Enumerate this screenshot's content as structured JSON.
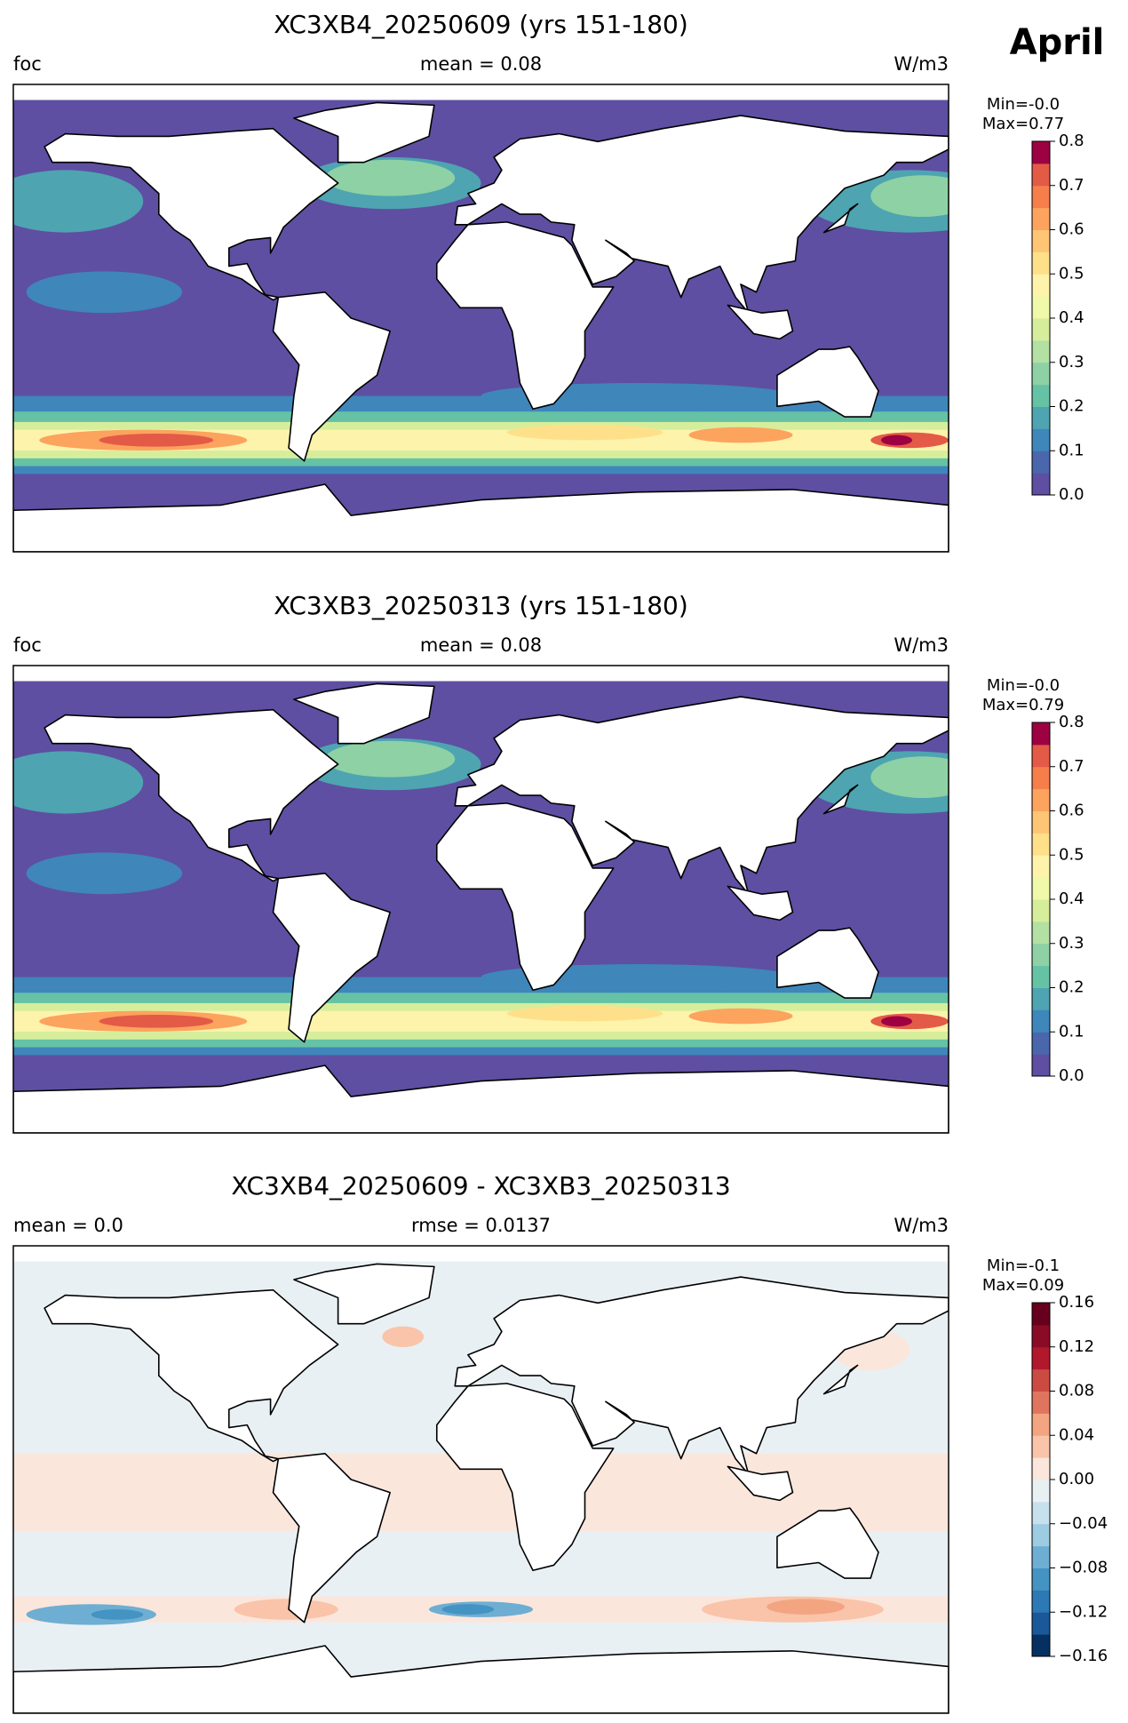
{
  "suptitle": "April",
  "chart_data": [
    {
      "type": "contour-map",
      "title": "XC3XB4_20250609 (yrs 151-180)",
      "left_label": "foc",
      "center_label": "mean = 0.08",
      "right_label": "W/m3",
      "colorbar": {
        "min_label": "Min=-0.0",
        "max_label": "Max=0.77",
        "lim": [
          0,
          0.8
        ],
        "ticks": [
          {
            "value": 0,
            "label": "0.0"
          },
          0.1,
          0.2,
          0.3,
          0.4,
          0.5,
          0.6,
          0.7,
          0.8
        ],
        "colors": [
          "#5e4fa2",
          "#4a67ae",
          "#3f86bb",
          "#4ea4b1",
          "#66c2a5",
          "#8dd1a4",
          "#b3e0a3",
          "#d6ee9b",
          "#f0f8a9",
          "#fdf3ab",
          "#fee08b",
          "#fdc574",
          "#fca35e",
          "#f67e4b",
          "#e35a47",
          "#9e0142"
        ]
      }
    },
    {
      "type": "contour-map",
      "title": "XC3XB3_20250313 (yrs 151-180)",
      "left_label": "foc",
      "center_label": "mean = 0.08",
      "right_label": "W/m3",
      "colorbar": {
        "min_label": "Min=-0.0",
        "max_label": "Max=0.79",
        "lim": [
          0,
          0.8
        ],
        "ticks": [
          {
            "value": 0,
            "label": "0.0"
          },
          0.1,
          0.2,
          0.3,
          0.4,
          0.5,
          0.6,
          0.7,
          0.8
        ],
        "colors": [
          "#5e4fa2",
          "#4a67ae",
          "#3f86bb",
          "#4ea4b1",
          "#66c2a5",
          "#8dd1a4",
          "#b3e0a3",
          "#d6ee9b",
          "#f0f8a9",
          "#fdf3ab",
          "#fee08b",
          "#fdc574",
          "#fca35e",
          "#f67e4b",
          "#e35a47",
          "#9e0142"
        ]
      }
    },
    {
      "type": "contour-map",
      "title": "XC3XB4_20250609 - XC3XB3_20250313",
      "left_label": "mean = 0.0",
      "center_label": "rmse = 0.0137",
      "right_label": "W/m3",
      "colorbar": {
        "min_label": "Min=-0.1",
        "max_label": "Max=0.09",
        "lim": [
          -0.16,
          0.16
        ],
        "ticks": [
          {
            "value": -0.16,
            "label": "−0.16"
          },
          {
            "value": -0.12,
            "label": "−0.12"
          },
          {
            "value": -0.08,
            "label": "−0.08"
          },
          {
            "value": -0.04,
            "label": "−0.04"
          },
          {
            "value": 0,
            "label": "0.00"
          },
          0.04,
          0.08,
          0.12,
          0.16
        ],
        "colors": [
          "#053061",
          "#1a5899",
          "#2c79b5",
          "#4393c3",
          "#6eaed2",
          "#9dcbe1",
          "#c7e0ed",
          "#e9f0f4",
          "#fbe6dc",
          "#f9c4a9",
          "#f3a481",
          "#e0745f",
          "#cb4b43",
          "#b2182b",
          "#8a0b25",
          "#67001f"
        ]
      }
    }
  ]
}
